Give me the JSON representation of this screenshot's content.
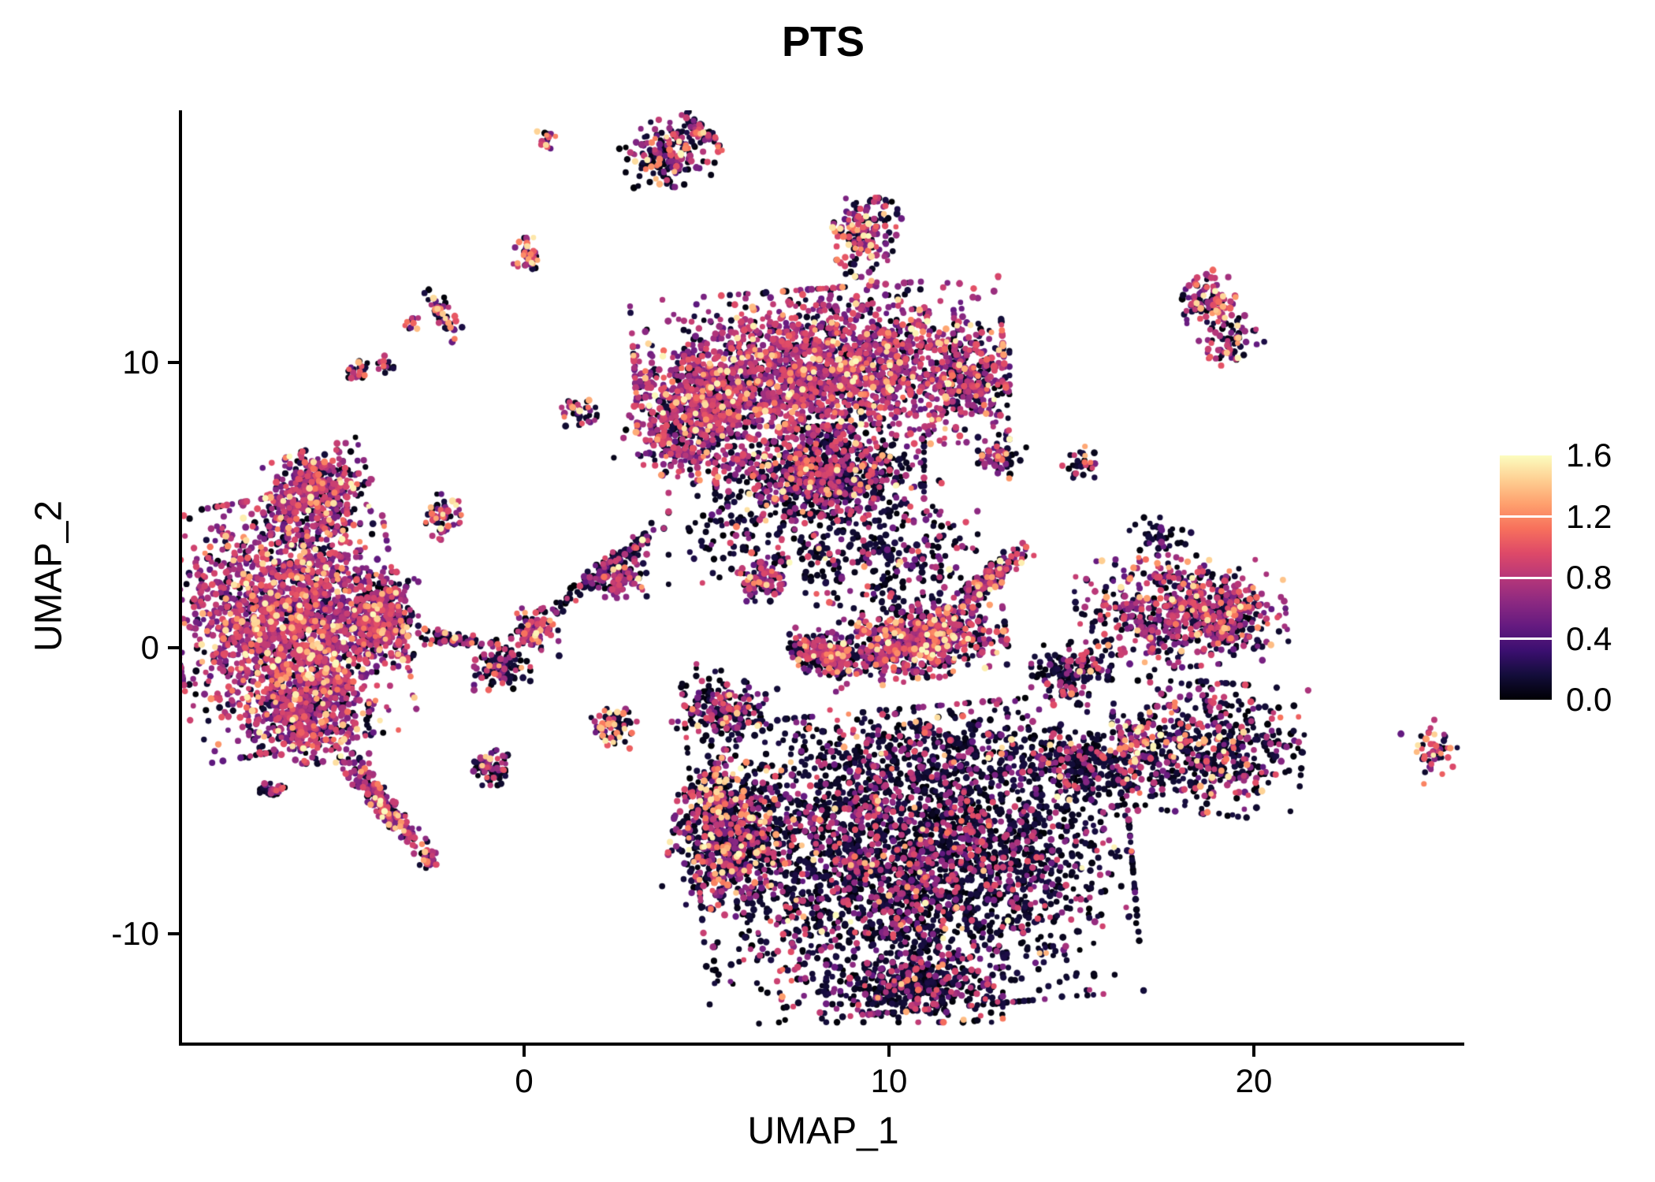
{
  "title": "PTS",
  "axes": {
    "x_label": "UMAP_1",
    "y_label": "UMAP_2",
    "x_ticks": [
      {
        "label": "0",
        "value": 0
      },
      {
        "label": "10",
        "value": 10
      },
      {
        "label": "20",
        "value": 20
      }
    ],
    "y_ticks": [
      {
        "label": "10",
        "value": 10
      },
      {
        "label": "0",
        "value": 0
      },
      {
        "label": "-10",
        "value": -10
      }
    ]
  },
  "legend": {
    "min": 0,
    "max": 1.6,
    "ticks": [
      {
        "label": "1.6",
        "value": 1.6
      },
      {
        "label": "1.2",
        "value": 1.2
      },
      {
        "label": "0.8",
        "value": 0.8
      },
      {
        "label": "0.4",
        "value": 0.4
      },
      {
        "label": "0.0",
        "value": 0.0
      }
    ]
  },
  "chart_data": {
    "type": "scatter",
    "title": "PTS",
    "xlabel": "UMAP_1",
    "ylabel": "UMAP_2",
    "xlim": [
      -9.4,
      25.8
    ],
    "ylim": [
      -13.8,
      18.8
    ],
    "grid": false,
    "legend_position": "right",
    "color_scale": {
      "palette": "magma",
      "domain": [
        0,
        1.6
      ],
      "stops": [
        [
          0.0,
          "#000004"
        ],
        [
          0.1,
          "#130d3a"
        ],
        [
          0.2,
          "#3b0f70"
        ],
        [
          0.3,
          "#641a80"
        ],
        [
          0.4,
          "#8c2981"
        ],
        [
          0.5,
          "#b73779"
        ],
        [
          0.6,
          "#de4968"
        ],
        [
          0.7,
          "#f7705c"
        ],
        [
          0.8,
          "#fe9f6d"
        ],
        [
          0.9,
          "#fecf92"
        ],
        [
          1.0,
          "#fcfdbf"
        ]
      ]
    },
    "point_radius_px": [
      3.3,
      4.5
    ],
    "clusters_columns": [
      "x",
      "y",
      "sd_x",
      "sd_y",
      "rot_deg",
      "n_points",
      "frac_low_expr",
      "frac_high_expr"
    ],
    "clusters": [
      [
        -6.5,
        0.9,
        1.4,
        2.0,
        -10,
        2000,
        0.18,
        0.14
      ],
      [
        -5.7,
        5.4,
        0.7,
        0.7,
        -20,
        450,
        0.28,
        0.08
      ],
      [
        -4.0,
        1.0,
        0.5,
        0.75,
        0,
        400,
        0.35,
        0.07
      ],
      [
        -5.9,
        -2.4,
        0.75,
        0.75,
        0,
        380,
        0.3,
        0.1
      ],
      [
        -3.9,
        -5.4,
        0.9,
        0.18,
        50,
        220,
        0.3,
        0.13
      ],
      [
        -2.6,
        -7.4,
        0.13,
        0.15,
        0,
        25,
        0.4,
        0.1
      ],
      [
        -6.8,
        -5.0,
        0.2,
        0.17,
        0,
        28,
        0.55,
        0.05
      ],
      [
        8.1,
        9.7,
        2.3,
        1.3,
        -4,
        2100,
        0.22,
        0.1
      ],
      [
        4.6,
        8.0,
        0.75,
        1.0,
        20,
        550,
        0.3,
        0.08
      ],
      [
        8.1,
        6.1,
        1.3,
        0.75,
        0,
        850,
        0.6,
        0.05
      ],
      [
        7.7,
        3.9,
        1.7,
        0.9,
        0,
        280,
        0.75,
        0.04
      ],
      [
        12.2,
        9.4,
        0.5,
        0.8,
        0,
        240,
        0.45,
        0.05
      ],
      [
        2.3,
        2.8,
        0.85,
        0.15,
        -38,
        150,
        0.7,
        0.04
      ],
      [
        0.3,
        0.6,
        0.3,
        0.4,
        0,
        90,
        0.3,
        0.16
      ],
      [
        2.7,
        2.5,
        0.3,
        0.35,
        0,
        80,
        0.35,
        0.12
      ],
      [
        10.8,
        0.2,
        1.1,
        0.6,
        -8,
        700,
        0.3,
        0.13
      ],
      [
        12.7,
        2.3,
        0.65,
        0.18,
        -42,
        180,
        0.35,
        0.1
      ],
      [
        8.3,
        -0.2,
        0.5,
        0.35,
        10,
        240,
        0.4,
        0.1
      ],
      [
        10.5,
        2.8,
        1.2,
        0.9,
        0,
        190,
        0.72,
        0.05
      ],
      [
        6.5,
        2.4,
        0.35,
        0.35,
        0,
        85,
        0.35,
        0.1
      ],
      [
        -0.6,
        -0.6,
        0.35,
        0.4,
        0,
        110,
        0.65,
        0.04
      ],
      [
        2.5,
        -2.8,
        0.3,
        0.33,
        0,
        70,
        0.45,
        0.22
      ],
      [
        5.5,
        -2.2,
        0.6,
        0.6,
        15,
        220,
        0.6,
        0.06
      ],
      [
        5.2,
        -4.3,
        0.15,
        0.14,
        0,
        20,
        0.3,
        0.1
      ],
      [
        -0.9,
        -4.2,
        0.3,
        0.28,
        0,
        70,
        0.6,
        0.05
      ],
      [
        -2.1,
        0.3,
        0.45,
        0.14,
        8,
        60,
        0.55,
        0.05
      ],
      [
        10.7,
        -7.4,
        2.7,
        2.4,
        -5,
        3200,
        0.74,
        0.025
      ],
      [
        5.7,
        -6.6,
        0.75,
        1.2,
        10,
        650,
        0.55,
        0.12
      ],
      [
        15.4,
        -4.2,
        0.95,
        0.55,
        10,
        280,
        0.7,
        0.04
      ],
      [
        10.7,
        -11.9,
        1.1,
        0.55,
        0,
        380,
        0.75,
        0.03
      ],
      [
        10.5,
        -3.5,
        1.9,
        0.6,
        0,
        240,
        0.7,
        0.05
      ],
      [
        5.3,
        -5.2,
        0.45,
        0.4,
        0,
        80,
        0.35,
        0.3
      ],
      [
        18.0,
        1.3,
        1.3,
        0.9,
        -5,
        600,
        0.35,
        0.08
      ],
      [
        19.3,
        0.9,
        0.45,
        0.5,
        0,
        150,
        0.6,
        0.04
      ],
      [
        15.0,
        -0.9,
        0.5,
        0.5,
        0,
        160,
        0.72,
        0.03
      ],
      [
        18.7,
        -3.5,
        1.2,
        1.05,
        5,
        550,
        0.62,
        0.06
      ],
      [
        16.8,
        -3.1,
        0.3,
        0.4,
        0,
        60,
        0.4,
        0.25
      ],
      [
        17.4,
        3.9,
        0.4,
        0.3,
        0,
        40,
        0.8,
        0.02
      ],
      [
        24.9,
        -3.6,
        0.3,
        0.45,
        -20,
        50,
        0.35,
        0.22
      ],
      [
        0.6,
        17.8,
        0.12,
        0.2,
        0,
        15,
        0.3,
        0.5
      ],
      [
        3.9,
        17.3,
        0.55,
        0.55,
        -15,
        170,
        0.5,
        0.1
      ],
      [
        4.9,
        18.0,
        0.35,
        0.14,
        40,
        55,
        0.55,
        0.08
      ],
      [
        0.1,
        13.7,
        0.18,
        0.3,
        0,
        45,
        0.4,
        0.28
      ],
      [
        9.3,
        14.4,
        0.4,
        0.65,
        15,
        160,
        0.45,
        0.15
      ],
      [
        -4.5,
        9.7,
        0.14,
        0.2,
        0,
        22,
        0.5,
        0.2
      ],
      [
        -3.8,
        9.9,
        0.11,
        0.15,
        0,
        14,
        0.4,
        0.25
      ],
      [
        -2.2,
        11.7,
        0.35,
        0.15,
        55,
        50,
        0.35,
        0.22
      ],
      [
        -3.1,
        11.3,
        0.09,
        0.11,
        0,
        10,
        0.2,
        0.5
      ],
      [
        -2.2,
        4.5,
        0.25,
        0.4,
        0,
        60,
        0.35,
        0.18
      ],
      [
        18.7,
        12.2,
        0.35,
        0.4,
        -20,
        110,
        0.4,
        0.15
      ],
      [
        19.4,
        10.7,
        0.35,
        0.35,
        -30,
        70,
        0.45,
        0.12
      ],
      [
        13.1,
        6.7,
        0.3,
        0.35,
        0,
        60,
        0.45,
        0.1
      ],
      [
        15.2,
        6.5,
        0.25,
        0.25,
        0,
        30,
        0.7,
        0.05
      ],
      [
        1.5,
        8.3,
        0.3,
        0.3,
        0,
        35,
        0.4,
        0.15
      ]
    ]
  }
}
